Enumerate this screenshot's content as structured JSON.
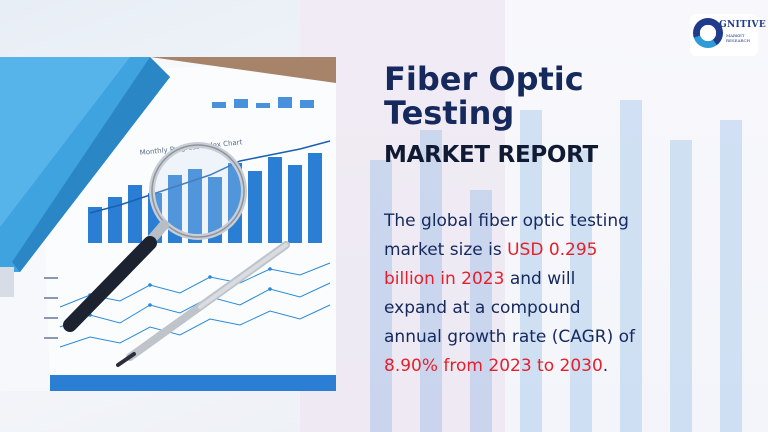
{
  "logo": {
    "word": "COGNITIVE",
    "word_display": "GNITIVE",
    "sub_line1": "MARKET",
    "sub_line2": "RESEARCH"
  },
  "report": {
    "title_line1": "Fiber Optic",
    "title_line2": "Testing",
    "subtitle": "MARKET REPORT"
  },
  "description": {
    "line1": "The global fiber optic testing",
    "line2a": "market size is ",
    "line2b": "USD 0.295",
    "line3a": "billion in 2023",
    "line3b": " and will",
    "line4": "expand at a compound",
    "line5": "annual growth rate (CAGR) of",
    "line6a": "8.90% from 2023 to 2030",
    "line6b": "."
  },
  "photo": {
    "paper_heading": "Monthly Progress Index Chart"
  },
  "colors": {
    "title": "#16295c",
    "highlight": "#e5202c",
    "chart_blue": "#2a7fd4",
    "binder_blue": "#3fa3e0"
  }
}
